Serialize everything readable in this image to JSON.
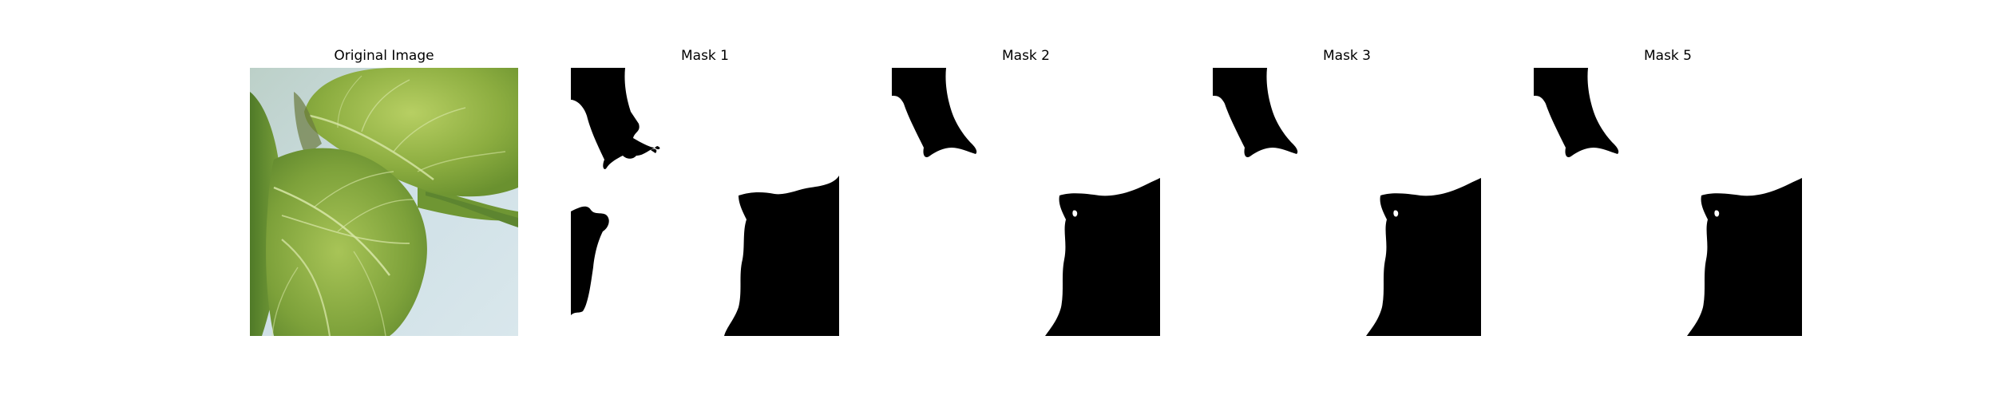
{
  "figure": {
    "panels": [
      {
        "title": "Original Image",
        "kind": "photo"
      },
      {
        "title": "Mask 1",
        "kind": "mask"
      },
      {
        "title": "Mask 2",
        "kind": "mask"
      },
      {
        "title": "Mask 3",
        "kind": "mask"
      },
      {
        "title": "Mask 5",
        "kind": "mask"
      }
    ]
  },
  "colors": {
    "background": "#ffffff",
    "mask_foreground": "#000000",
    "mask_background": "#ffffff",
    "leaf_light": "#a6c252",
    "leaf_mid": "#7fa33a",
    "leaf_dark": "#55802a",
    "leaf_vein": "#d8e7a8",
    "surface": "#cfe0e6"
  }
}
